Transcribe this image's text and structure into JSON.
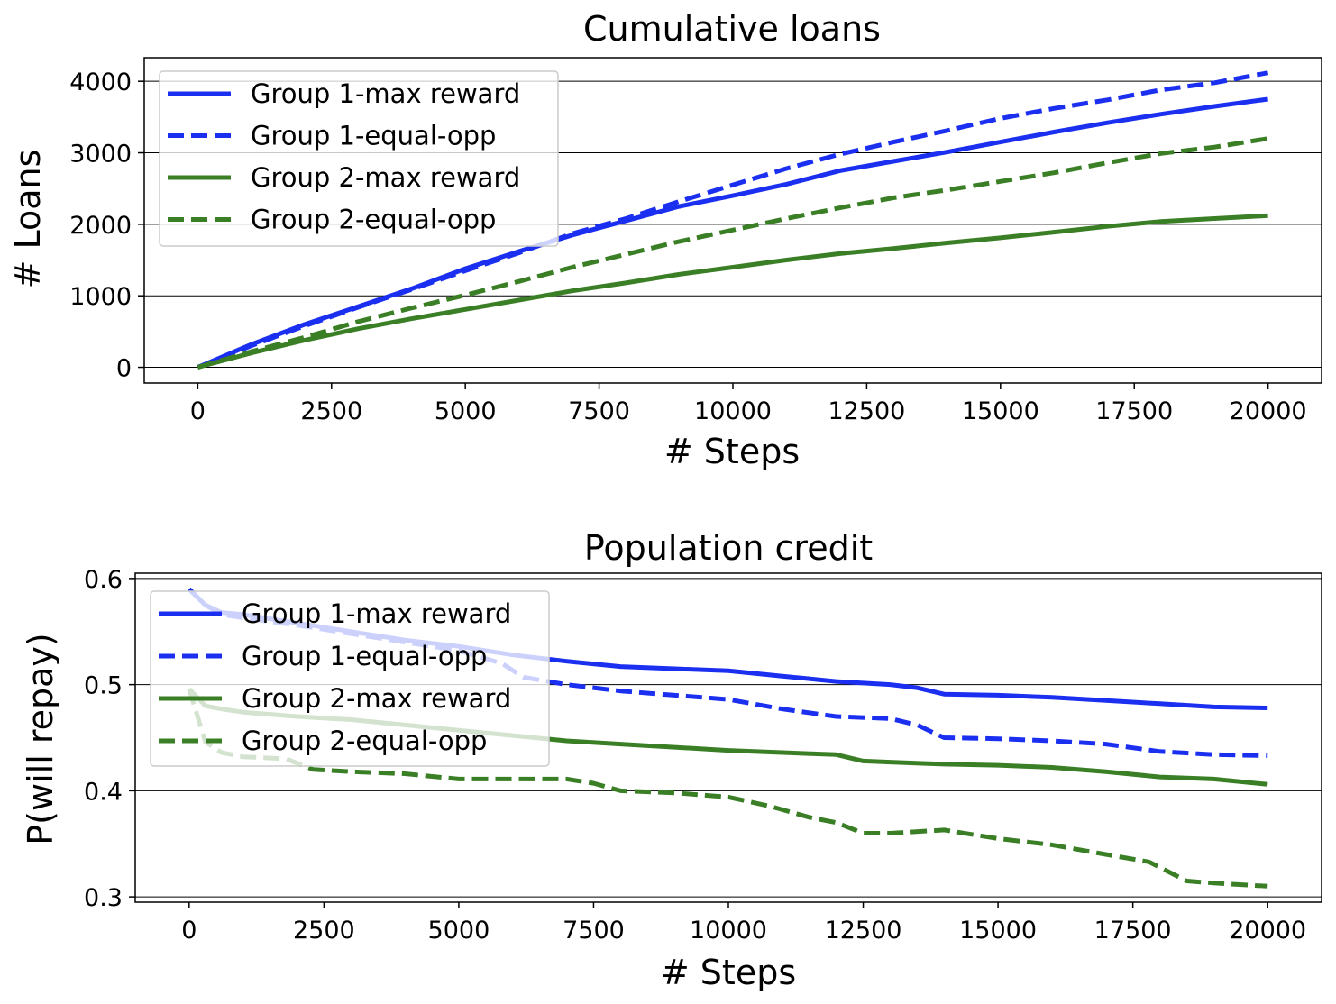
{
  "chart_data": [
    {
      "type": "line",
      "title": "Cumulative loans",
      "xlabel": "# Steps",
      "ylabel": "# Loans",
      "xlim": [
        -1000,
        21000
      ],
      "ylim": [
        -220,
        4330
      ],
      "xticks": [
        0,
        2500,
        5000,
        7500,
        10000,
        12500,
        15000,
        17500,
        20000
      ],
      "yticks": [
        0,
        1000,
        2000,
        3000,
        4000
      ],
      "xtick_labels": [
        "0",
        "2500",
        "5000",
        "7500",
        "10000",
        "12500",
        "15000",
        "17500",
        "20000"
      ],
      "ytick_labels": [
        "0",
        "1000",
        "2000",
        "3000",
        "4000"
      ],
      "grid": "horizontal",
      "legend_position": "upper-left",
      "series": [
        {
          "name": "Group 1-max reward",
          "color": "#1a2ff0",
          "style": "solid",
          "x": [
            0,
            1000,
            2000,
            3000,
            4000,
            5000,
            6000,
            7000,
            8000,
            9000,
            10000,
            11000,
            12000,
            13000,
            14000,
            15000,
            16000,
            17000,
            18000,
            19000,
            20000
          ],
          "y": [
            0,
            320,
            600,
            850,
            1100,
            1380,
            1620,
            1850,
            2050,
            2250,
            2400,
            2560,
            2750,
            2880,
            3010,
            3150,
            3290,
            3420,
            3540,
            3650,
            3750
          ]
        },
        {
          "name": "Group 1-equal-opp",
          "color": "#1a2ff0",
          "style": "dashed",
          "x": [
            0,
            1000,
            2000,
            3000,
            4000,
            5000,
            6000,
            7000,
            8000,
            9000,
            10000,
            11000,
            12000,
            13000,
            14000,
            15000,
            16000,
            17000,
            18000,
            19000,
            20000
          ],
          "y": [
            0,
            300,
            580,
            840,
            1090,
            1350,
            1600,
            1870,
            2080,
            2320,
            2550,
            2780,
            2980,
            3150,
            3310,
            3480,
            3620,
            3740,
            3880,
            3980,
            4120
          ]
        },
        {
          "name": "Group 2-max reward",
          "color": "#3a7f26",
          "style": "solid",
          "x": [
            0,
            1000,
            2000,
            3000,
            4000,
            5000,
            6000,
            7000,
            8000,
            9000,
            10000,
            11000,
            12000,
            13000,
            14000,
            15000,
            16000,
            17000,
            18000,
            19000,
            20000
          ],
          "y": [
            0,
            200,
            380,
            540,
            680,
            810,
            940,
            1070,
            1180,
            1300,
            1400,
            1500,
            1590,
            1660,
            1740,
            1810,
            1890,
            1970,
            2040,
            2080,
            2120
          ]
        },
        {
          "name": "Group 2-equal-opp",
          "color": "#3a7f26",
          "style": "dashed",
          "x": [
            0,
            1000,
            2000,
            3000,
            4000,
            5000,
            6000,
            7000,
            8000,
            9000,
            10000,
            11000,
            12000,
            13000,
            14000,
            15000,
            16000,
            17000,
            18000,
            19000,
            20000
          ],
          "y": [
            0,
            220,
            420,
            640,
            830,
            1010,
            1200,
            1400,
            1580,
            1760,
            1920,
            2080,
            2230,
            2370,
            2480,
            2600,
            2720,
            2860,
            2990,
            3080,
            3200
          ]
        }
      ]
    },
    {
      "type": "line",
      "title": "Population credit",
      "xlabel": "# Steps",
      "ylabel": "P(will repay)",
      "xlim": [
        -1000,
        21000
      ],
      "ylim": [
        0.295,
        0.605
      ],
      "xticks": [
        0,
        2500,
        5000,
        7500,
        10000,
        12500,
        15000,
        17500,
        20000
      ],
      "yticks": [
        0.3,
        0.4,
        0.5,
        0.6
      ],
      "xtick_labels": [
        "0",
        "2500",
        "5000",
        "7500",
        "10000",
        "12500",
        "15000",
        "17500",
        "20000"
      ],
      "ytick_labels": [
        "0.3",
        "0.4",
        "0.5",
        "0.6"
      ],
      "grid": "horizontal",
      "legend_position": "upper-left",
      "series": [
        {
          "name": "Group 1-max reward",
          "color": "#1a2ff0",
          "style": "solid",
          "x": [
            0,
            300,
            600,
            1000,
            2000,
            3000,
            4000,
            5000,
            6000,
            7000,
            8000,
            9000,
            10000,
            11000,
            12000,
            13000,
            13500,
            14000,
            15000,
            16000,
            17000,
            18000,
            19000,
            20000
          ],
          "y": [
            0.59,
            0.575,
            0.568,
            0.566,
            0.558,
            0.55,
            0.542,
            0.536,
            0.528,
            0.522,
            0.517,
            0.515,
            0.513,
            0.508,
            0.503,
            0.5,
            0.497,
            0.491,
            0.49,
            0.488,
            0.485,
            0.482,
            0.479,
            0.478
          ]
        },
        {
          "name": "Group 1-equal-opp",
          "color": "#1a2ff0",
          "style": "dashed",
          "x": [
            0,
            300,
            600,
            1000,
            2000,
            3000,
            4000,
            5000,
            5800,
            6200,
            7000,
            8000,
            9000,
            10000,
            11000,
            12000,
            13000,
            13500,
            14000,
            15000,
            16000,
            17000,
            18000,
            19000,
            20000
          ],
          "y": [
            0.59,
            0.575,
            0.566,
            0.563,
            0.556,
            0.548,
            0.54,
            0.532,
            0.52,
            0.507,
            0.5,
            0.494,
            0.49,
            0.486,
            0.477,
            0.47,
            0.468,
            0.462,
            0.45,
            0.449,
            0.447,
            0.444,
            0.437,
            0.434,
            0.433
          ]
        },
        {
          "name": "Group 2-max reward",
          "color": "#3a7f26",
          "style": "solid",
          "x": [
            0,
            300,
            600,
            1000,
            2000,
            3000,
            4000,
            5000,
            6000,
            7000,
            8000,
            9000,
            10000,
            11000,
            12000,
            12500,
            13000,
            14000,
            15000,
            16000,
            17000,
            18000,
            19000,
            20000
          ],
          "y": [
            0.496,
            0.48,
            0.477,
            0.474,
            0.47,
            0.467,
            0.462,
            0.457,
            0.452,
            0.447,
            0.444,
            0.441,
            0.438,
            0.436,
            0.434,
            0.428,
            0.427,
            0.425,
            0.424,
            0.422,
            0.418,
            0.413,
            0.411,
            0.406
          ]
        },
        {
          "name": "Group 2-equal-opp",
          "color": "#3a7f26",
          "style": "dashed",
          "x": [
            0,
            300,
            600,
            1000,
            1800,
            2300,
            3000,
            4000,
            5000,
            6000,
            7000,
            7500,
            8000,
            9000,
            10000,
            10800,
            11500,
            12000,
            12500,
            13000,
            14000,
            15000,
            16000,
            17000,
            17800,
            18500,
            19000,
            20000
          ],
          "y": [
            0.496,
            0.446,
            0.436,
            0.432,
            0.43,
            0.42,
            0.418,
            0.416,
            0.411,
            0.411,
            0.411,
            0.407,
            0.4,
            0.398,
            0.394,
            0.385,
            0.375,
            0.37,
            0.36,
            0.36,
            0.363,
            0.355,
            0.349,
            0.34,
            0.333,
            0.315,
            0.313,
            0.31
          ]
        }
      ]
    }
  ]
}
